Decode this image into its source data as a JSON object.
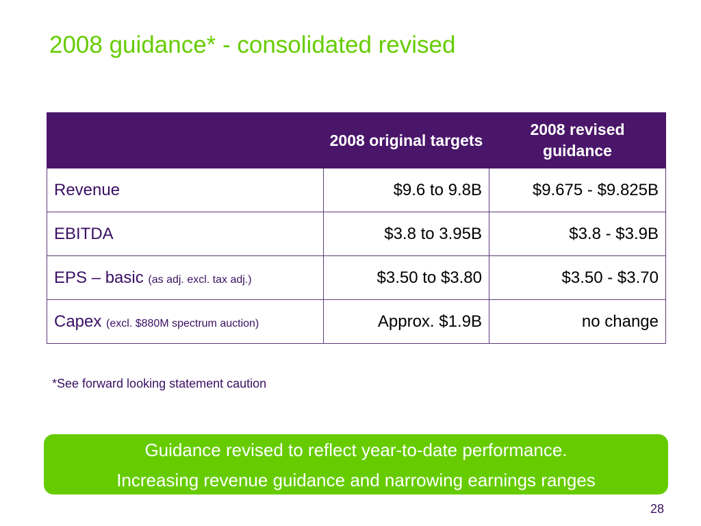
{
  "slide": {
    "title": "2008 guidance* - consolidated revised",
    "page_number": "28"
  },
  "table": {
    "headers": [
      "",
      "2008 original targets",
      "2008 revised guidance"
    ],
    "rows": [
      {
        "label": "Revenue",
        "note": "",
        "original": "$9.6 to 9.8B",
        "revised": "$9.675 - $9.825B"
      },
      {
        "label": "EBITDA",
        "note": "",
        "original": "$3.8 to 3.95B",
        "revised": "$3.8 - $3.9B"
      },
      {
        "label": "EPS – basic",
        "note": "(as adj. excl. tax adj.)",
        "original": "$3.50 to $3.80",
        "revised": "$3.50 - $3.70"
      },
      {
        "label": "Capex",
        "note": "(excl. $880M spectrum auction)",
        "original": "Approx. $1.9B",
        "revised": "no change"
      }
    ]
  },
  "footnote": "*See forward looking statement caution",
  "callout": {
    "line1": "Guidance revised to reflect year-to-date performance.",
    "line2": "Increasing revenue guidance and narrowing earnings ranges"
  },
  "colors": {
    "title": "#66cc00",
    "header_bg": "#4a1669",
    "callout_bg": "#66cc00",
    "text_purple": "#3a0f63"
  }
}
